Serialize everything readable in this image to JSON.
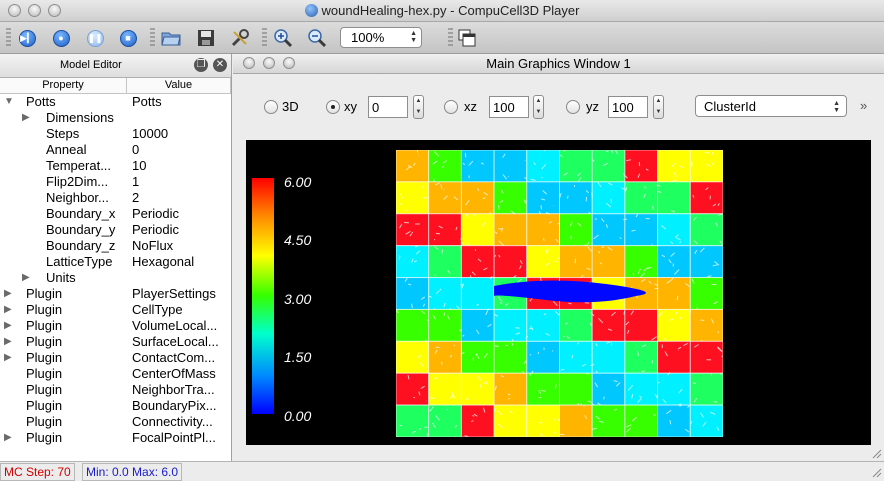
{
  "window": {
    "title": "woundHealing-hex.py - CompuCell3D Player"
  },
  "toolbar": {
    "zoom_value": "100%",
    "buttons": [
      "step",
      "run",
      "pause",
      "stop",
      "open-file",
      "save",
      "tools",
      "zoom-in",
      "zoom-out",
      "new-window"
    ]
  },
  "model_editor": {
    "title": "Model Editor",
    "col_property": "Property",
    "col_value": "Value",
    "rows": [
      {
        "level": 0,
        "expander": "open",
        "property": "Potts",
        "value": "Potts"
      },
      {
        "level": 1,
        "expander": "closed",
        "property": "Dimensions",
        "value": ""
      },
      {
        "level": 1,
        "expander": "none",
        "property": "Steps",
        "value": "10000"
      },
      {
        "level": 1,
        "expander": "none",
        "property": "Anneal",
        "value": "0"
      },
      {
        "level": 1,
        "expander": "none",
        "property": "Temperat...",
        "value": "10"
      },
      {
        "level": 1,
        "expander": "none",
        "property": "Flip2Dim...",
        "value": "1"
      },
      {
        "level": 1,
        "expander": "none",
        "property": "Neighbor...",
        "value": "2"
      },
      {
        "level": 1,
        "expander": "none",
        "property": "Boundary_x",
        "value": "Periodic"
      },
      {
        "level": 1,
        "expander": "none",
        "property": "Boundary_y",
        "value": "Periodic"
      },
      {
        "level": 1,
        "expander": "none",
        "property": "Boundary_z",
        "value": "NoFlux"
      },
      {
        "level": 1,
        "expander": "none",
        "property": "LatticeType",
        "value": "Hexagonal"
      },
      {
        "level": 1,
        "expander": "closed",
        "property": "Units",
        "value": ""
      },
      {
        "level": 0,
        "expander": "closed",
        "property": "Plugin",
        "value": "PlayerSettings"
      },
      {
        "level": 0,
        "expander": "closed",
        "property": "Plugin",
        "value": "CellType"
      },
      {
        "level": 0,
        "expander": "closed",
        "property": "Plugin",
        "value": "VolumeLocal..."
      },
      {
        "level": 0,
        "expander": "closed",
        "property": "Plugin",
        "value": "SurfaceLocal..."
      },
      {
        "level": 0,
        "expander": "closed",
        "property": "Plugin",
        "value": "ContactCom..."
      },
      {
        "level": 0,
        "expander": "none",
        "property": "Plugin",
        "value": "CenterOfMass"
      },
      {
        "level": 0,
        "expander": "none",
        "property": "Plugin",
        "value": "NeighborTra..."
      },
      {
        "level": 0,
        "expander": "none",
        "property": "Plugin",
        "value": "BoundaryPix..."
      },
      {
        "level": 0,
        "expander": "none",
        "property": "Plugin",
        "value": "Connectivity..."
      },
      {
        "level": 0,
        "expander": "closed",
        "property": "Plugin",
        "value": "FocalPointPl..."
      }
    ]
  },
  "graphics_window": {
    "title": "Main Graphics Window 1",
    "view_3d_label": "3D",
    "view_xy_label": "xy",
    "view_xz_label": "xz",
    "view_yz_label": "yz",
    "selected_view": "xy",
    "xy_value": "0",
    "xz_value": "100",
    "yz_value": "100",
    "field": "ClusterId",
    "colorbar_labels": [
      "6.00",
      "4.50",
      "3.00",
      "1.50",
      "0.00"
    ],
    "colorbar_colors": [
      "#ff0000",
      "#ff8800",
      "#ffff00",
      "#33ff00",
      "#00ffcc",
      "#0088ff",
      "#0000ff"
    ]
  },
  "status": {
    "mc_step": "MC Step: 70",
    "min_max": "Min: 0.0 Max: 6.0"
  }
}
